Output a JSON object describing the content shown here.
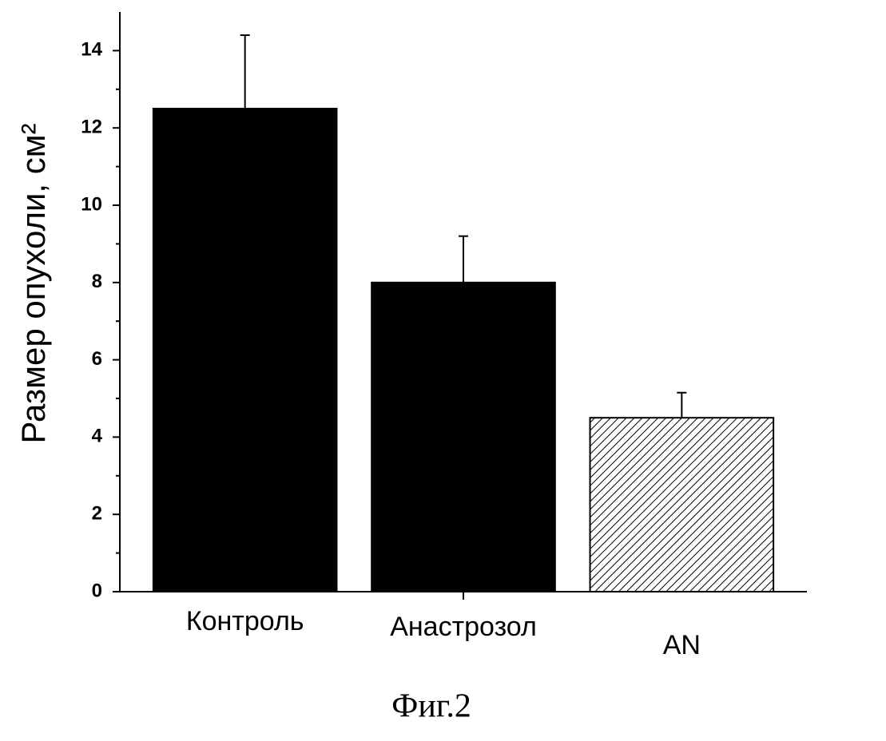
{
  "chart_data": {
    "type": "bar",
    "ylabel": "Размер опухоли, см²",
    "caption": "Фиг.2",
    "categories": [
      "Контроль",
      "Анастрозол",
      "AN"
    ],
    "values": [
      12.5,
      8.0,
      4.5
    ],
    "errors": [
      1.9,
      1.2,
      0.65
    ],
    "colors": [
      "#000000",
      "#000000",
      "#ffffff"
    ],
    "hatch": [
      false,
      false,
      true
    ],
    "ylim": [
      0,
      15
    ],
    "yticks": [
      0,
      2,
      4,
      6,
      8,
      10,
      12,
      14
    ]
  }
}
